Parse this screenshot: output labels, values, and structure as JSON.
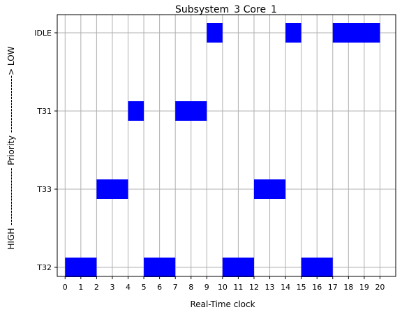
{
  "chart_data": {
    "type": "bar",
    "title": "Subsystem_3 Core_1",
    "xlabel": "Real-Time clock",
    "ylabel": "HIGH ------------------- Priority -------------------> LOW",
    "x_ticks": [
      0,
      1,
      2,
      3,
      4,
      5,
      6,
      7,
      8,
      9,
      10,
      11,
      12,
      13,
      14,
      15,
      16,
      17,
      18,
      19,
      20
    ],
    "xlim": [
      -0.5,
      21
    ],
    "categories": [
      "T32",
      "T33",
      "T31",
      "IDLE"
    ],
    "grid": true,
    "bar_color": "#0000ff",
    "tasks": [
      {
        "task": "T32",
        "start": 0,
        "end": 2
      },
      {
        "task": "T32",
        "start": 5,
        "end": 7
      },
      {
        "task": "T32",
        "start": 10,
        "end": 12
      },
      {
        "task": "T32",
        "start": 15,
        "end": 17
      },
      {
        "task": "T33",
        "start": 2,
        "end": 4
      },
      {
        "task": "T33",
        "start": 12,
        "end": 14
      },
      {
        "task": "T31",
        "start": 4,
        "end": 5
      },
      {
        "task": "T31",
        "start": 7,
        "end": 9
      },
      {
        "task": "IDLE",
        "start": 9,
        "end": 10
      },
      {
        "task": "IDLE",
        "start": 14,
        "end": 15
      },
      {
        "task": "IDLE",
        "start": 17,
        "end": 20
      }
    ]
  }
}
